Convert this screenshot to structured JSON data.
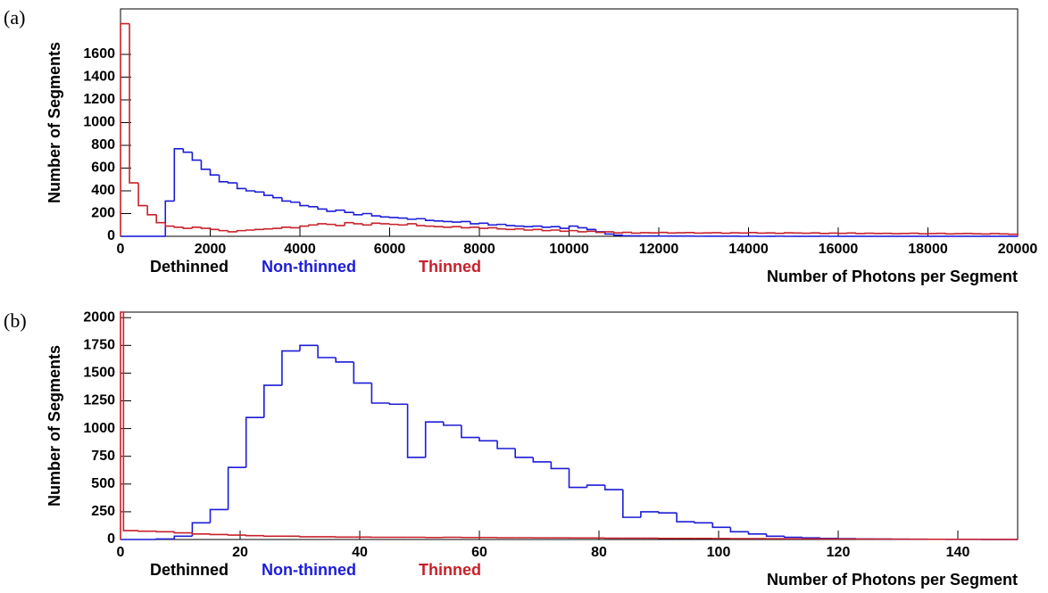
{
  "chart_data": [
    {
      "type": "histogram",
      "panel": "(a)",
      "ylabel": "Number of Segments",
      "xlabel": "Number of Photons per Segment",
      "annotation": "Dethinned",
      "xlim": [
        0,
        20000
      ],
      "ylim": [
        0,
        2000
      ],
      "xticks": [
        0,
        2000,
        4000,
        6000,
        8000,
        10000,
        12000,
        14000,
        16000,
        18000,
        20000
      ],
      "yticks": [
        0,
        200,
        400,
        600,
        800,
        1000,
        1200,
        1400,
        1600
      ],
      "bins": [
        0,
        200,
        400,
        600,
        800,
        1000,
        1200,
        1400,
        1600,
        1800,
        2000,
        2200,
        2400,
        2600,
        2800,
        3000,
        3200,
        3400,
        3600,
        3800,
        4000,
        4200,
        4400,
        4600,
        4800,
        5000,
        5200,
        5400,
        5600,
        5800,
        6000,
        6200,
        6400,
        6600,
        6800,
        7000,
        7200,
        7400,
        7600,
        7800,
        8000,
        8200,
        8400,
        8600,
        8800,
        9000,
        9200,
        9400,
        9600,
        9800,
        10000,
        10200,
        10400,
        10600,
        10800,
        11000,
        11200,
        11400,
        11600,
        11800,
        12000,
        12200,
        12400,
        12600,
        12800,
        13000,
        13200,
        13400,
        13600,
        13800,
        14000,
        14200,
        14400,
        14600,
        14800,
        15000,
        15200,
        15400,
        15600,
        15800,
        16000,
        16200,
        16400,
        16600,
        16800,
        17000,
        17200,
        17400,
        17600,
        17800,
        18000,
        18200,
        18400,
        18600,
        18800,
        19000,
        19200,
        19400,
        19600,
        19800,
        20000
      ],
      "series": [
        {
          "name": "Non-thinned",
          "color": "#1c1cd8",
          "values": [
            0,
            0,
            0,
            0,
            0,
            310,
            770,
            740,
            670,
            590,
            540,
            480,
            470,
            420,
            400,
            390,
            360,
            340,
            310,
            300,
            270,
            260,
            240,
            220,
            230,
            210,
            190,
            200,
            180,
            170,
            165,
            160,
            150,
            155,
            140,
            135,
            130,
            125,
            130,
            110,
            115,
            100,
            105,
            95,
            90,
            85,
            90,
            80,
            85,
            70,
            90,
            75,
            60,
            40,
            20,
            10,
            5,
            4,
            3,
            3,
            2,
            2,
            2,
            2,
            1,
            1,
            1,
            1,
            1,
            0,
            1,
            0,
            0,
            1,
            0,
            0,
            0,
            0,
            1,
            0,
            0,
            0,
            0,
            0,
            0,
            0,
            0,
            0,
            0,
            0,
            0,
            0,
            0,
            0,
            0,
            0,
            0,
            0,
            0,
            0
          ]
        },
        {
          "name": "Thinned",
          "color": "#c8202a",
          "values": [
            1870,
            470,
            270,
            190,
            120,
            90,
            80,
            70,
            80,
            70,
            60,
            50,
            40,
            50,
            55,
            60,
            65,
            70,
            80,
            75,
            90,
            100,
            110,
            105,
            95,
            120,
            110,
            100,
            115,
            110,
            105,
            100,
            110,
            95,
            90,
            85,
            80,
            85,
            75,
            80,
            70,
            75,
            65,
            60,
            65,
            55,
            60,
            50,
            55,
            45,
            50,
            40,
            45,
            35,
            40,
            30,
            35,
            28,
            32,
            30,
            34,
            29,
            31,
            33,
            28,
            30,
            32,
            27,
            31,
            29,
            33,
            28,
            30,
            26,
            31,
            29,
            27,
            30,
            25,
            28,
            26,
            29,
            24,
            27,
            25,
            26,
            23,
            25,
            27,
            22,
            24,
            26,
            21,
            23,
            25,
            22,
            20,
            24,
            21,
            18
          ]
        }
      ]
    },
    {
      "type": "histogram",
      "panel": "(b)",
      "ylabel": "Number of Segments",
      "xlabel": "Number of Photons per Segment",
      "annotation": "Dethinned",
      "xlim": [
        0,
        150
      ],
      "ylim": [
        0,
        2050
      ],
      "xticks": [
        0,
        20,
        40,
        60,
        80,
        100,
        120,
        140
      ],
      "yticks": [
        0,
        250,
        500,
        750,
        1000,
        1250,
        1500,
        1750,
        2000
      ],
      "bins": [
        0,
        3,
        6,
        9,
        12,
        15,
        18,
        21,
        24,
        27,
        30,
        33,
        36,
        39,
        42,
        45,
        48,
        51,
        54,
        57,
        60,
        63,
        66,
        69,
        72,
        75,
        78,
        81,
        84,
        87,
        90,
        93,
        96,
        99,
        102,
        105,
        108,
        111,
        114,
        117,
        120,
        123,
        126,
        129,
        132,
        135,
        138,
        141,
        144,
        147,
        150
      ],
      "series": [
        {
          "name": "Non-thinned",
          "color": "#1c1cd8",
          "values": [
            0,
            0,
            5,
            30,
            150,
            270,
            650,
            1100,
            1390,
            1700,
            1750,
            1640,
            1600,
            1410,
            1230,
            1220,
            740,
            1060,
            1030,
            920,
            890,
            820,
            740,
            700,
            640,
            470,
            490,
            450,
            200,
            250,
            240,
            160,
            150,
            110,
            70,
            50,
            30,
            20,
            15,
            10,
            8,
            5,
            4,
            3,
            2,
            2,
            1,
            1,
            0,
            0
          ]
        },
        {
          "name": "Thinned",
          "color": "#c8202a",
          "bins": [
            0,
            0.5,
            3,
            6,
            9,
            12,
            15,
            18,
            21,
            24,
            27,
            30,
            33,
            36,
            39,
            42,
            45,
            48,
            51,
            54,
            57,
            60,
            63,
            66,
            69,
            72,
            75,
            78,
            81,
            84,
            87,
            90,
            93,
            96,
            99,
            102,
            105,
            108,
            111,
            114,
            117,
            120,
            123,
            126,
            129,
            132,
            135,
            138,
            141,
            144,
            147,
            150
          ],
          "values": [
            2050,
            80,
            75,
            70,
            60,
            50,
            45,
            40,
            35,
            30,
            30,
            25,
            25,
            22,
            22,
            20,
            20,
            20,
            18,
            20,
            18,
            18,
            16,
            16,
            15,
            15,
            14,
            14,
            12,
            12,
            12,
            10,
            10,
            10,
            9,
            8,
            8,
            7,
            6,
            6,
            5,
            5,
            4,
            4,
            3,
            3,
            2,
            2,
            2,
            1,
            1
          ]
        }
      ]
    }
  ]
}
